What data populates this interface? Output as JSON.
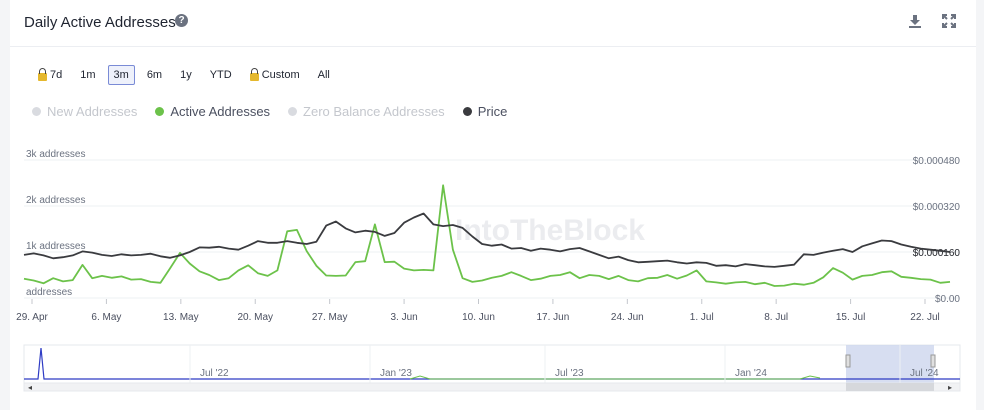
{
  "header": {
    "title": "Daily Active Addresses",
    "help_icon": "question-circle-icon",
    "download_icon": "download-icon",
    "expand_icon": "expand-icon"
  },
  "ranges": [
    {
      "label": "7d",
      "locked": true
    },
    {
      "label": "1m",
      "locked": false
    },
    {
      "label": "3m",
      "locked": false,
      "active": true
    },
    {
      "label": "6m",
      "locked": false
    },
    {
      "label": "1y",
      "locked": false
    },
    {
      "label": "YTD",
      "locked": false
    },
    {
      "label": "Custom",
      "locked": true
    },
    {
      "label": "All",
      "locked": false
    }
  ],
  "legend": [
    {
      "label": "New Addresses",
      "color": "#d9dbe0",
      "enabled": false
    },
    {
      "label": "Active Addresses",
      "color": "#6cc24a",
      "enabled": true
    },
    {
      "label": "Zero Balance Addresses",
      "color": "#d9dbe0",
      "enabled": false
    },
    {
      "label": "Price",
      "color": "#3a3b3f",
      "enabled": true
    }
  ],
  "watermark": "IntoTheBlock",
  "chart_data": {
    "type": "line",
    "x_tick_labels": [
      "29. Apr",
      "6. May",
      "13. May",
      "20. May",
      "27. May",
      "3. Jun",
      "10. Jun",
      "17. Jun",
      "24. Jun",
      "1. Jul",
      "8. Jul",
      "15. Jul",
      "22. Jul"
    ],
    "y_left_tick_labels": [
      "3k addresses",
      "2k addresses",
      "1k addresses",
      "addresses"
    ],
    "y_left_ticks": [
      3000,
      2000,
      1000,
      0
    ],
    "ylim_left": [
      0,
      3000
    ],
    "y_right_tick_labels": [
      "$0.000480",
      "$0.000320",
      "$0.000160",
      "$0.00"
    ],
    "y_right_ticks": [
      0.00048,
      0.00032,
      0.00016,
      0
    ],
    "ylim_right": [
      0,
      0.00048
    ],
    "price_label": "$0.000160",
    "grid": true,
    "series": [
      {
        "name": "Active Addresses",
        "axis": "left",
        "color": "#6cc24a",
        "values": [
          420,
          380,
          320,
          430,
          360,
          390,
          720,
          430,
          480,
          440,
          470,
          400,
          410,
          350,
          330,
          650,
          980,
          750,
          580,
          500,
          390,
          430,
          600,
          710,
          540,
          480,
          600,
          1450,
          1480,
          1020,
          700,
          490,
          480,
          490,
          780,
          800,
          1600,
          780,
          790,
          640,
          600,
          610,
          600,
          2450,
          1050,
          430,
          350,
          380,
          440,
          480,
          560,
          480,
          390,
          420,
          480,
          500,
          560,
          430,
          500,
          480,
          410,
          480,
          390,
          360,
          430,
          440,
          500,
          420,
          490,
          600,
          360,
          340,
          310,
          340,
          350,
          300,
          330,
          260,
          270,
          310,
          290,
          330,
          450,
          650,
          550,
          400,
          480,
          500,
          560,
          580,
          460,
          440,
          410,
          400,
          330,
          350
        ]
      },
      {
        "name": "Price",
        "axis": "right",
        "color": "#3a3b3f",
        "values": [
          0.00015,
          0.000155,
          0.000148,
          0.000138,
          0.000142,
          0.000148,
          0.000162,
          0.000158,
          0.00015,
          0.000146,
          0.000152,
          0.000148,
          0.00015,
          0.000154,
          0.000145,
          0.00014,
          0.000148,
          0.00016,
          0.000176,
          0.000175,
          0.000178,
          0.000172,
          0.000168,
          0.000182,
          0.000198,
          0.000192,
          0.000192,
          0.000198,
          0.000192,
          0.000188,
          0.000196,
          0.000252,
          0.000266,
          0.000242,
          0.000228,
          0.000234,
          0.00023,
          0.000216,
          0.000226,
          0.000262,
          0.00028,
          0.000294,
          0.000256,
          0.00025,
          0.000254,
          0.000244,
          0.000214,
          0.000188,
          0.000182,
          0.000186,
          0.000172,
          0.000174,
          0.000164,
          0.000172,
          0.000168,
          0.000162,
          0.00017,
          0.000174,
          0.000162,
          0.00015,
          0.000138,
          0.000144,
          0.000132,
          0.000124,
          0.000126,
          0.000128,
          0.00013,
          0.000124,
          0.00012,
          0.000124,
          0.000122,
          0.000112,
          0.000114,
          0.00011,
          0.000118,
          0.000114,
          0.00011,
          0.000108,
          0.000112,
          0.000116,
          0.000152,
          0.00015,
          0.000158,
          0.000164,
          0.00017,
          0.00016,
          0.00018,
          0.00019,
          0.0002,
          0.000198,
          0.000186,
          0.000178,
          0.000172,
          0.000168,
          0.000164,
          0.00016
        ]
      }
    ]
  },
  "navigator": {
    "labels": [
      "Jul '22",
      "Jan '23",
      "Jul '23",
      "Jan '24",
      "Jul '24"
    ]
  }
}
